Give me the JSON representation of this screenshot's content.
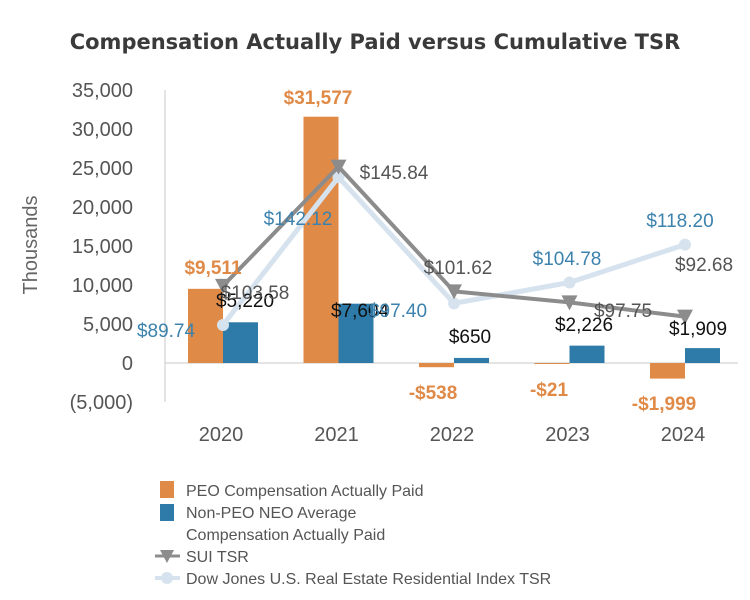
{
  "chart_data": {
    "type": "bar",
    "title": "Compensation Actually Paid versus Cumulative TSR",
    "ylabel": "Thousands",
    "ylim": [
      -5000,
      35000
    ],
    "yticks": [
      35000,
      30000,
      25000,
      20000,
      15000,
      10000,
      5000,
      0,
      -5000
    ],
    "ytick_labels": [
      "35,000",
      "30,000",
      "25,000",
      "20,000",
      "15,000",
      "10,000",
      "5,000",
      "0",
      "(5,000)"
    ],
    "categories": [
      "2020",
      "2021",
      "2022",
      "2023",
      "2024"
    ],
    "grid": false,
    "legend_position": "bottom",
    "colors": {
      "peo": "#e08a47",
      "neo": "#2e7aa8",
      "sui": "#8c8c8c",
      "dj": "#d6e3ee"
    },
    "series": [
      {
        "name": "PEO Compensation Actually Paid",
        "kind": "bar",
        "values": [
          9511,
          31577,
          -538,
          -21,
          -1999
        ],
        "labels": [
          "$9,511",
          "$31,577",
          "-$538",
          "-$21",
          "-$1,999"
        ]
      },
      {
        "name": "Non-PEO NEO Average Compensation Actually Paid",
        "legend_lines": [
          "Non-PEO NEO Average",
          "Compensation Actually Paid"
        ],
        "kind": "bar",
        "values": [
          5220,
          7604,
          650,
          2226,
          1909
        ],
        "labels": [
          "$5,220",
          "$7,604",
          "$650",
          "$2,226",
          "$1,909"
        ]
      },
      {
        "name": "SUI TSR",
        "kind": "line",
        "values": [
          103.58,
          145.84,
          101.62,
          97.75,
          92.68
        ],
        "labels": [
          "$103.58",
          "$145.84",
          "$101.62",
          "$97.75",
          "$92.68"
        ]
      },
      {
        "name": "Dow Jones U.S. Real Estate Residential Index TSR",
        "kind": "line",
        "values": [
          89.74,
          142.12,
          97.4,
          104.78,
          118.2
        ],
        "labels": [
          "$89.74",
          "$142.12",
          "$97.40",
          "$104.78",
          "$118.20"
        ]
      }
    ]
  }
}
